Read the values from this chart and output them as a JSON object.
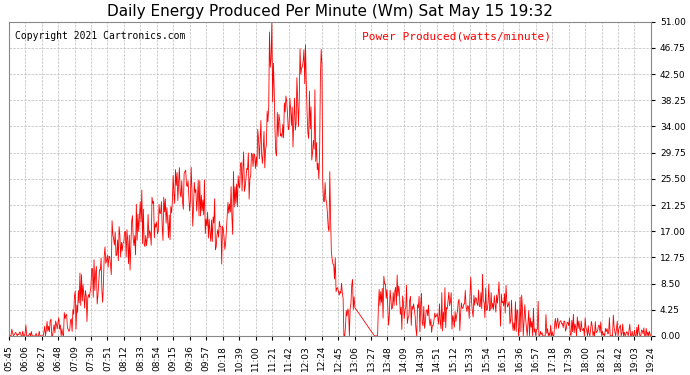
{
  "title": "Daily Energy Produced Per Minute (Wm) Sat May 15 19:32",
  "copyright": "Copyright 2021 Cartronics.com",
  "legend_label": "Power Produced(watts/minute)",
  "ylim": [
    0,
    51
  ],
  "yticks": [
    0.0,
    4.25,
    8.5,
    12.75,
    17.0,
    21.25,
    25.5,
    29.75,
    34.0,
    38.25,
    42.5,
    46.75,
    51.0
  ],
  "line_color": "red",
  "background_color": "#ffffff",
  "grid_color": "#bbbbbb",
  "title_fontsize": 11,
  "copyright_fontsize": 7,
  "legend_fontsize": 8,
  "tick_fontsize": 6.5,
  "x_tick_labels": [
    "05:45",
    "06:06",
    "06:27",
    "06:48",
    "07:09",
    "07:30",
    "07:51",
    "08:12",
    "08:33",
    "08:54",
    "09:15",
    "09:36",
    "09:57",
    "10:18",
    "10:39",
    "11:00",
    "11:21",
    "11:42",
    "12:03",
    "12:24",
    "12:45",
    "13:06",
    "13:27",
    "13:48",
    "14:09",
    "14:30",
    "14:51",
    "15:12",
    "15:33",
    "15:54",
    "16:15",
    "16:36",
    "16:57",
    "17:18",
    "17:39",
    "18:00",
    "18:21",
    "18:42",
    "19:03",
    "19:24"
  ],
  "n_points": 821
}
